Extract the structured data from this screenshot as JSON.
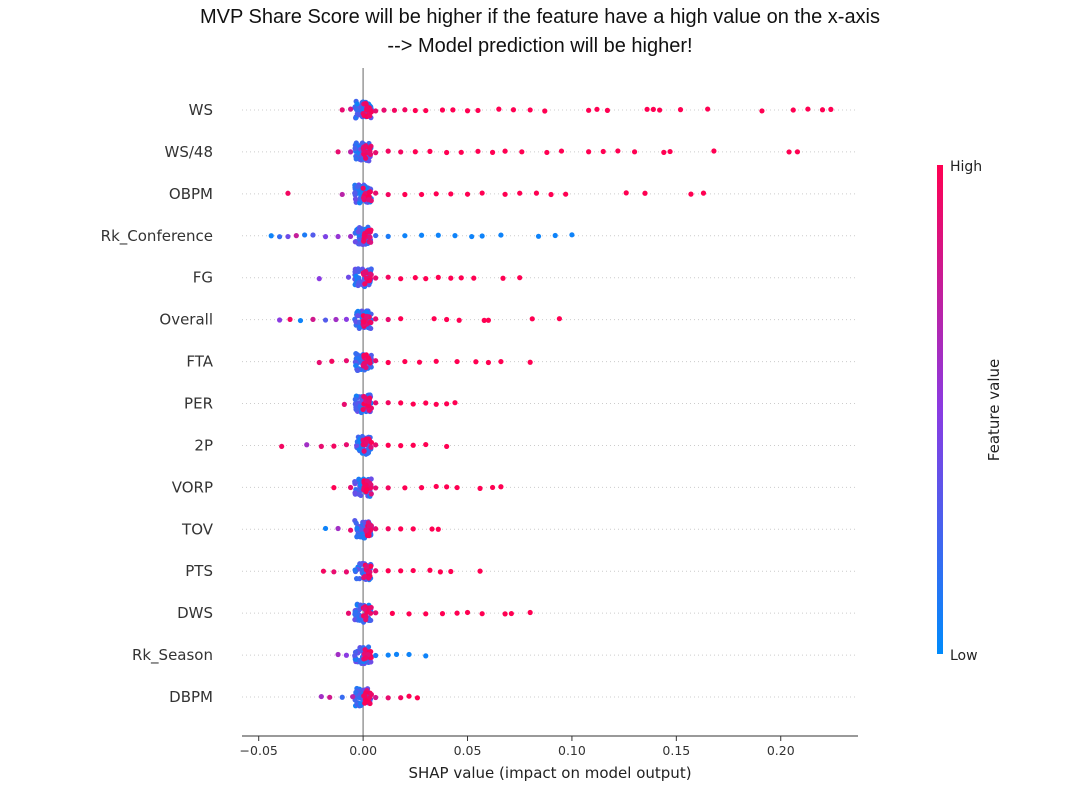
{
  "chart_data": {
    "type": "scatter",
    "title": "MVP Share Score will be higher if the feature have a high value on the x-axis",
    "subtitle": "--> Model prediction will be higher!",
    "xlabel": "SHAP value (impact on model output)",
    "xlim": [
      -0.058,
      0.237
    ],
    "xticks": [
      "−0.05",
      "0.00",
      "0.05",
      "0.10",
      "0.15",
      "0.20"
    ],
    "xtick_values": [
      -0.05,
      0,
      0.05,
      0.1,
      0.15,
      0.2
    ],
    "colorbar": {
      "label": "Feature value",
      "high": "High",
      "low": "Low",
      "high_color": "#ff0052",
      "low_color": "#008bfb"
    },
    "features": [
      {
        "name": "WS",
        "points": [
          {
            "x": -0.01,
            "v": 0.9
          },
          {
            "x": -0.006,
            "v": 0.8
          },
          {
            "x": 0.006,
            "v": 0.9
          },
          {
            "x": 0.01,
            "v": 0.9
          },
          {
            "x": 0.015,
            "v": 0.95
          },
          {
            "x": 0.02,
            "v": 0.95
          },
          {
            "x": 0.025,
            "v": 1
          },
          {
            "x": 0.03,
            "v": 1
          },
          {
            "x": 0.038,
            "v": 1
          },
          {
            "x": 0.043,
            "v": 1
          },
          {
            "x": 0.05,
            "v": 1
          },
          {
            "x": 0.055,
            "v": 1
          },
          {
            "x": 0.065,
            "v": 1
          },
          {
            "x": 0.072,
            "v": 1
          },
          {
            "x": 0.08,
            "v": 1
          },
          {
            "x": 0.087,
            "v": 1
          },
          {
            "x": 0.108,
            "v": 1
          },
          {
            "x": 0.112,
            "v": 1
          },
          {
            "x": 0.117,
            "v": 1
          },
          {
            "x": 0.136,
            "v": 1
          },
          {
            "x": 0.139,
            "v": 1
          },
          {
            "x": 0.142,
            "v": 1
          },
          {
            "x": 0.152,
            "v": 1
          },
          {
            "x": 0.165,
            "v": 1
          },
          {
            "x": 0.191,
            "v": 1
          },
          {
            "x": 0.206,
            "v": 1
          },
          {
            "x": 0.213,
            "v": 1
          },
          {
            "x": 0.22,
            "v": 1
          },
          {
            "x": 0.224,
            "v": 1
          }
        ]
      },
      {
        "name": "WS/48",
        "points": [
          {
            "x": -0.012,
            "v": 0.9
          },
          {
            "x": -0.006,
            "v": 0.7
          },
          {
            "x": 0.006,
            "v": 0.9
          },
          {
            "x": 0.012,
            "v": 0.95
          },
          {
            "x": 0.018,
            "v": 0.95
          },
          {
            "x": 0.025,
            "v": 1
          },
          {
            "x": 0.032,
            "v": 1
          },
          {
            "x": 0.04,
            "v": 1
          },
          {
            "x": 0.047,
            "v": 1
          },
          {
            "x": 0.055,
            "v": 1
          },
          {
            "x": 0.062,
            "v": 1
          },
          {
            "x": 0.068,
            "v": 1
          },
          {
            "x": 0.076,
            "v": 1
          },
          {
            "x": 0.088,
            "v": 1
          },
          {
            "x": 0.095,
            "v": 1
          },
          {
            "x": 0.108,
            "v": 1
          },
          {
            "x": 0.115,
            "v": 1
          },
          {
            "x": 0.122,
            "v": 1
          },
          {
            "x": 0.13,
            "v": 1
          },
          {
            "x": 0.144,
            "v": 1
          },
          {
            "x": 0.147,
            "v": 1
          },
          {
            "x": 0.168,
            "v": 1
          },
          {
            "x": 0.204,
            "v": 1
          },
          {
            "x": 0.208,
            "v": 1
          }
        ]
      },
      {
        "name": "OBPM",
        "points": [
          {
            "x": -0.036,
            "v": 0.95
          },
          {
            "x": -0.01,
            "v": 0.7
          },
          {
            "x": -0.004,
            "v": 0.3
          },
          {
            "x": 0.006,
            "v": 0.9
          },
          {
            "x": 0.012,
            "v": 0.95
          },
          {
            "x": 0.02,
            "v": 1
          },
          {
            "x": 0.028,
            "v": 1
          },
          {
            "x": 0.035,
            "v": 1
          },
          {
            "x": 0.042,
            "v": 1
          },
          {
            "x": 0.05,
            "v": 1
          },
          {
            "x": 0.057,
            "v": 1
          },
          {
            "x": 0.068,
            "v": 1
          },
          {
            "x": 0.075,
            "v": 1
          },
          {
            "x": 0.083,
            "v": 1
          },
          {
            "x": 0.09,
            "v": 1
          },
          {
            "x": 0.097,
            "v": 1
          },
          {
            "x": 0.126,
            "v": 1
          },
          {
            "x": 0.135,
            "v": 1
          },
          {
            "x": 0.157,
            "v": 1
          },
          {
            "x": 0.163,
            "v": 1
          }
        ]
      },
      {
        "name": "Rk_Conference",
        "points": [
          {
            "x": -0.044,
            "v": 0.05
          },
          {
            "x": -0.04,
            "v": 0.2
          },
          {
            "x": -0.036,
            "v": 0.4
          },
          {
            "x": -0.032,
            "v": 0.75
          },
          {
            "x": -0.028,
            "v": 0.1
          },
          {
            "x": -0.024,
            "v": 0.3
          },
          {
            "x": -0.018,
            "v": 0.45
          },
          {
            "x": -0.012,
            "v": 0.55
          },
          {
            "x": -0.006,
            "v": 0.6
          },
          {
            "x": 0.006,
            "v": 0.2
          },
          {
            "x": 0.012,
            "v": 0.1
          },
          {
            "x": 0.02,
            "v": 0.05
          },
          {
            "x": 0.028,
            "v": 0.05
          },
          {
            "x": 0.036,
            "v": 0.05
          },
          {
            "x": 0.044,
            "v": 0.05
          },
          {
            "x": 0.052,
            "v": 0.05
          },
          {
            "x": 0.057,
            "v": 0.05
          },
          {
            "x": 0.066,
            "v": 0.05
          },
          {
            "x": 0.084,
            "v": 0.05
          },
          {
            "x": 0.092,
            "v": 0.05
          },
          {
            "x": 0.1,
            "v": 0.05
          }
        ]
      },
      {
        "name": "FG",
        "points": [
          {
            "x": -0.021,
            "v": 0.5
          },
          {
            "x": -0.007,
            "v": 0.4
          },
          {
            "x": 0.006,
            "v": 0.9
          },
          {
            "x": 0.012,
            "v": 0.95
          },
          {
            "x": 0.018,
            "v": 1
          },
          {
            "x": 0.025,
            "v": 1
          },
          {
            "x": 0.03,
            "v": 1
          },
          {
            "x": 0.036,
            "v": 1
          },
          {
            "x": 0.042,
            "v": 1
          },
          {
            "x": 0.047,
            "v": 1
          },
          {
            "x": 0.053,
            "v": 1
          },
          {
            "x": 0.067,
            "v": 1
          },
          {
            "x": 0.075,
            "v": 1
          }
        ]
      },
      {
        "name": "Overall",
        "points": [
          {
            "x": -0.04,
            "v": 0.5
          },
          {
            "x": -0.035,
            "v": 0.95
          },
          {
            "x": -0.03,
            "v": 0.05
          },
          {
            "x": -0.024,
            "v": 0.8
          },
          {
            "x": -0.018,
            "v": 0.3
          },
          {
            "x": -0.013,
            "v": 0.6
          },
          {
            "x": -0.008,
            "v": 0.5
          },
          {
            "x": 0.006,
            "v": 0.9
          },
          {
            "x": 0.012,
            "v": 0.9
          },
          {
            "x": 0.018,
            "v": 1
          },
          {
            "x": 0.034,
            "v": 1
          },
          {
            "x": 0.04,
            "v": 1
          },
          {
            "x": 0.046,
            "v": 1
          },
          {
            "x": 0.058,
            "v": 1
          },
          {
            "x": 0.06,
            "v": 1
          },
          {
            "x": 0.081,
            "v": 1
          },
          {
            "x": 0.094,
            "v": 1
          }
        ]
      },
      {
        "name": "FTA",
        "points": [
          {
            "x": -0.021,
            "v": 0.9
          },
          {
            "x": -0.015,
            "v": 0.95
          },
          {
            "x": -0.008,
            "v": 0.9
          },
          {
            "x": 0.006,
            "v": 0.9
          },
          {
            "x": 0.012,
            "v": 1
          },
          {
            "x": 0.02,
            "v": 1
          },
          {
            "x": 0.027,
            "v": 1
          },
          {
            "x": 0.035,
            "v": 1
          },
          {
            "x": 0.045,
            "v": 1
          },
          {
            "x": 0.054,
            "v": 1
          },
          {
            "x": 0.06,
            "v": 1
          },
          {
            "x": 0.066,
            "v": 1
          },
          {
            "x": 0.08,
            "v": 1
          }
        ]
      },
      {
        "name": "PER",
        "points": [
          {
            "x": -0.009,
            "v": 0.9
          },
          {
            "x": 0.006,
            "v": 0.9
          },
          {
            "x": 0.012,
            "v": 0.95
          },
          {
            "x": 0.018,
            "v": 1
          },
          {
            "x": 0.024,
            "v": 1
          },
          {
            "x": 0.03,
            "v": 1
          },
          {
            "x": 0.035,
            "v": 1
          },
          {
            "x": 0.04,
            "v": 1
          },
          {
            "x": 0.044,
            "v": 1
          }
        ]
      },
      {
        "name": "2P",
        "points": [
          {
            "x": -0.039,
            "v": 0.95
          },
          {
            "x": -0.027,
            "v": 0.6
          },
          {
            "x": -0.02,
            "v": 0.9
          },
          {
            "x": -0.014,
            "v": 0.95
          },
          {
            "x": -0.008,
            "v": 0.9
          },
          {
            "x": 0.006,
            "v": 0.9
          },
          {
            "x": 0.012,
            "v": 1
          },
          {
            "x": 0.018,
            "v": 1
          },
          {
            "x": 0.024,
            "v": 1
          },
          {
            "x": 0.03,
            "v": 1
          },
          {
            "x": 0.04,
            "v": 1
          }
        ]
      },
      {
        "name": "VORP",
        "points": [
          {
            "x": -0.014,
            "v": 1
          },
          {
            "x": -0.006,
            "v": 0.9
          },
          {
            "x": 0.006,
            "v": 0.9
          },
          {
            "x": 0.012,
            "v": 0.95
          },
          {
            "x": 0.02,
            "v": 1
          },
          {
            "x": 0.028,
            "v": 1
          },
          {
            "x": 0.035,
            "v": 1
          },
          {
            "x": 0.04,
            "v": 1
          },
          {
            "x": 0.045,
            "v": 1
          },
          {
            "x": 0.056,
            "v": 1
          },
          {
            "x": 0.062,
            "v": 1
          },
          {
            "x": 0.066,
            "v": 1
          }
        ]
      },
      {
        "name": "TOV",
        "points": [
          {
            "x": -0.018,
            "v": 0.05
          },
          {
            "x": -0.012,
            "v": 0.6
          },
          {
            "x": -0.006,
            "v": 0.9
          },
          {
            "x": 0.006,
            "v": 0.9
          },
          {
            "x": 0.012,
            "v": 0.95
          },
          {
            "x": 0.018,
            "v": 1
          },
          {
            "x": 0.024,
            "v": 1
          },
          {
            "x": 0.033,
            "v": 1
          },
          {
            "x": 0.036,
            "v": 1
          }
        ]
      },
      {
        "name": "PTS",
        "points": [
          {
            "x": -0.019,
            "v": 0.95
          },
          {
            "x": -0.014,
            "v": 0.9
          },
          {
            "x": -0.008,
            "v": 0.9
          },
          {
            "x": 0.006,
            "v": 0.9
          },
          {
            "x": 0.012,
            "v": 1
          },
          {
            "x": 0.018,
            "v": 1
          },
          {
            "x": 0.024,
            "v": 1
          },
          {
            "x": 0.032,
            "v": 1
          },
          {
            "x": 0.037,
            "v": 1
          },
          {
            "x": 0.042,
            "v": 1
          },
          {
            "x": 0.056,
            "v": 1
          }
        ]
      },
      {
        "name": "DWS",
        "points": [
          {
            "x": -0.007,
            "v": 0.9
          },
          {
            "x": 0.006,
            "v": 0.9
          },
          {
            "x": 0.014,
            "v": 1
          },
          {
            "x": 0.022,
            "v": 1
          },
          {
            "x": 0.03,
            "v": 1
          },
          {
            "x": 0.038,
            "v": 1
          },
          {
            "x": 0.045,
            "v": 1
          },
          {
            "x": 0.05,
            "v": 1
          },
          {
            "x": 0.057,
            "v": 1
          },
          {
            "x": 0.068,
            "v": 1
          },
          {
            "x": 0.071,
            "v": 1
          },
          {
            "x": 0.08,
            "v": 1
          }
        ]
      },
      {
        "name": "Rk_Season",
        "points": [
          {
            "x": -0.012,
            "v": 0.6
          },
          {
            "x": -0.008,
            "v": 0.5
          },
          {
            "x": -0.004,
            "v": 0.3
          },
          {
            "x": 0.006,
            "v": 0.1
          },
          {
            "x": 0.012,
            "v": 0.05
          },
          {
            "x": 0.016,
            "v": 0.05
          },
          {
            "x": 0.022,
            "v": 0.05
          },
          {
            "x": 0.03,
            "v": 0.05
          }
        ]
      },
      {
        "name": "DBPM",
        "points": [
          {
            "x": -0.02,
            "v": 0.6
          },
          {
            "x": -0.016,
            "v": 0.8
          },
          {
            "x": -0.01,
            "v": 0.2
          },
          {
            "x": -0.005,
            "v": 0.7
          },
          {
            "x": 0.006,
            "v": 0.8
          },
          {
            "x": 0.012,
            "v": 0.9
          },
          {
            "x": 0.018,
            "v": 0.95
          },
          {
            "x": 0.022,
            "v": 1
          },
          {
            "x": 0.026,
            "v": 1
          }
        ]
      }
    ]
  }
}
